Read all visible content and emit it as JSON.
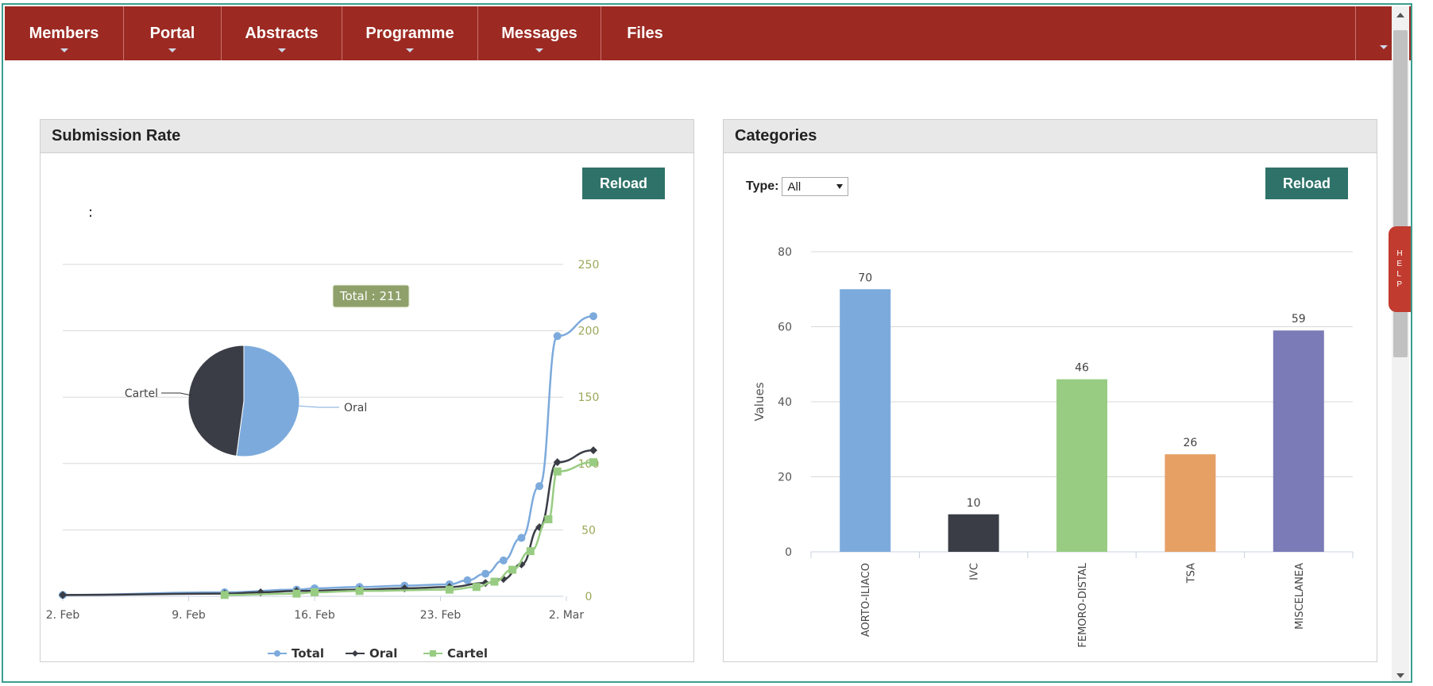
{
  "nav": {
    "items": [
      {
        "label": "Members",
        "has_menu": true
      },
      {
        "label": "Portal",
        "has_menu": true
      },
      {
        "label": "Abstracts",
        "has_menu": true
      },
      {
        "label": "Programme",
        "has_menu": true
      },
      {
        "label": "Messages",
        "has_menu": true
      },
      {
        "label": "Files",
        "has_menu": false
      }
    ]
  },
  "help_tab": {
    "label": "HELP"
  },
  "submission_panel": {
    "title": "Submission Rate",
    "reload_label": "Reload",
    "chart_colon": ":",
    "tooltip": "Total : 211",
    "pie_labels": {
      "cartel": "Cartel",
      "oral": "Oral"
    },
    "legend": [
      "Total",
      "Oral",
      "Cartel"
    ]
  },
  "categories_panel": {
    "title": "Categories",
    "reload_label": "Reload",
    "type_label": "Type:",
    "type_value": "All",
    "ylabel": "Values"
  },
  "chart_data": [
    {
      "type": "line",
      "title": "",
      "x_ticks": [
        "2. Feb",
        "9. Feb",
        "16. Feb",
        "23. Feb",
        "2. Mar"
      ],
      "y_ticks": [
        0,
        50,
        100,
        150,
        200,
        250
      ],
      "ylim": [
        0,
        250
      ],
      "xlim_days": [
        0,
        29.5
      ],
      "axis_side": "right",
      "legend_position": "bottom-center",
      "grid": true,
      "series": [
        {
          "name": "Total",
          "color": "#7caadc",
          "marker": "circle",
          "points": [
            [
              0,
              1
            ],
            [
              9,
              3
            ],
            [
              13,
              5
            ],
            [
              14,
              6
            ],
            [
              16.5,
              7
            ],
            [
              19,
              8
            ],
            [
              21.5,
              9
            ],
            [
              22.5,
              12
            ],
            [
              23.5,
              17
            ],
            [
              24.5,
              27
            ],
            [
              25.5,
              44
            ],
            [
              26.5,
              83
            ],
            [
              27.5,
              196
            ],
            [
              29.5,
              211
            ]
          ]
        },
        {
          "name": "Oral",
          "color": "#3a3d45",
          "marker": "diamond",
          "points": [
            [
              0,
              1
            ],
            [
              9,
              2
            ],
            [
              11,
              3
            ],
            [
              13,
              4
            ],
            [
              16.5,
              5
            ],
            [
              19,
              6
            ],
            [
              21.5,
              7
            ],
            [
              23.5,
              10
            ],
            [
              24.5,
              13
            ],
            [
              25.5,
              24
            ],
            [
              26.5,
              52
            ],
            [
              27.5,
              101
            ],
            [
              29.5,
              110
            ]
          ]
        },
        {
          "name": "Cartel",
          "color": "#98cc82",
          "marker": "square",
          "points": [
            [
              9,
              1
            ],
            [
              13,
              2
            ],
            [
              14,
              3
            ],
            [
              16.5,
              4
            ],
            [
              21.5,
              5
            ],
            [
              23,
              7
            ],
            [
              24,
              11
            ],
            [
              25,
              20
            ],
            [
              26,
              34
            ],
            [
              27,
              58
            ],
            [
              27.5,
              94
            ],
            [
              29.5,
              101
            ]
          ]
        }
      ],
      "pie": {
        "slices": [
          {
            "name": "Oral",
            "value": 110,
            "color": "#7caadc"
          },
          {
            "name": "Cartel",
            "value": 101,
            "color": "#3a3d45"
          }
        ]
      }
    },
    {
      "type": "bar",
      "title": "",
      "categories": [
        "AORTO-ILIACO",
        "IVC",
        "FEMORO-DISTAL",
        "TSA",
        "MISCELANEA"
      ],
      "values": [
        70,
        10,
        46,
        26,
        59
      ],
      "colors": [
        "#7caadc",
        "#3a3d45",
        "#98cc82",
        "#e6a064",
        "#7b7bb8"
      ],
      "ylabel": "Values",
      "ylim": [
        0,
        80
      ],
      "y_ticks": [
        0,
        20,
        40,
        60,
        80
      ],
      "grid": true
    }
  ]
}
